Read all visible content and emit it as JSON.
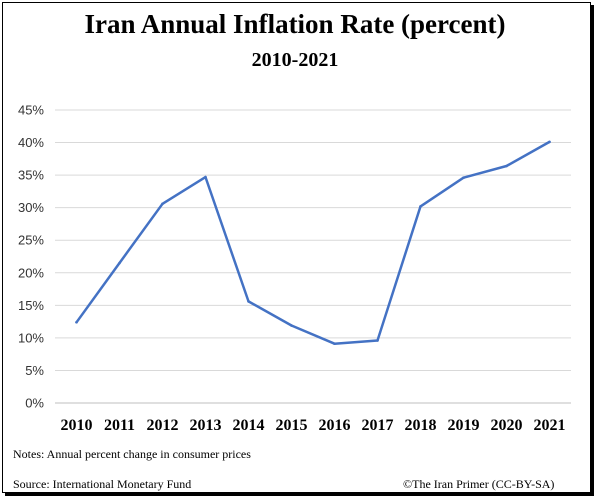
{
  "title": "Iran Annual Inflation Rate (percent)",
  "subtitle": "2010-2021",
  "notes": "Notes: Annual percent change in consumer prices",
  "source": "Source: International Monetary Fund",
  "credit": "©The Iran Primer  (CC-BY-SA)",
  "colors": {
    "line": "#4472C4",
    "grid": "#D9D9D9",
    "axis": "#BFBFBF"
  },
  "chart_data": {
    "type": "line",
    "title": "Iran Annual Inflation Rate (percent)",
    "subtitle": "2010-2021",
    "xlabel": "",
    "ylabel": "",
    "grid": true,
    "legend": "none",
    "ylim": [
      0,
      45
    ],
    "yticks": [
      "0%",
      "5%",
      "10%",
      "15%",
      "20%",
      "25%",
      "30%",
      "35%",
      "40%",
      "45%"
    ],
    "categories": [
      "2010",
      "2011",
      "2012",
      "2013",
      "2014",
      "2015",
      "2016",
      "2017",
      "2018",
      "2019",
      "2020",
      "2021"
    ],
    "series": [
      {
        "values": [
          12.4,
          21.5,
          30.6,
          34.7,
          15.6,
          11.9,
          9.1,
          9.6,
          30.2,
          34.6,
          36.4,
          40.1
        ]
      }
    ]
  }
}
